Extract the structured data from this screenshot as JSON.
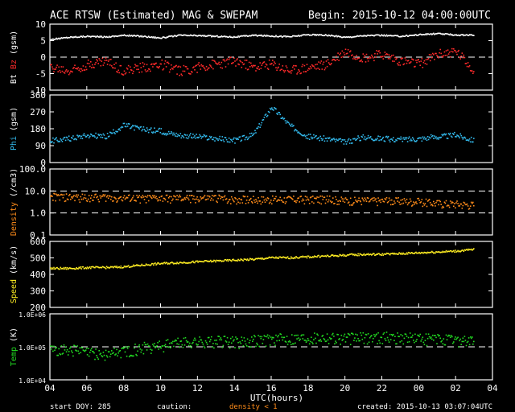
{
  "header": {
    "title": "ACE RTSW (Estimated) MAG & SWEPAM",
    "begin": "Begin: 2015-10-12 04:00:00UTC"
  },
  "footer": {
    "start_doy": "start DOY: 285",
    "caution": "caution:",
    "density_note": "density < 1",
    "created": "created: 2015-10-13 03:07:04UTC"
  },
  "xaxis": {
    "label": "UTC(hours)",
    "ticks": [
      "04",
      "06",
      "08",
      "10",
      "12",
      "14",
      "16",
      "18",
      "20",
      "22",
      "00",
      "02",
      "04"
    ]
  },
  "colors": {
    "bt": "#ffffff",
    "bz": "#ff2a2a",
    "phi": "#33bbee",
    "density": "#ff8c1a",
    "speed": "#ffee22",
    "temp": "#22dd22",
    "frame": "#ffffff",
    "background": "#000000"
  },
  "chart_data": [
    {
      "type": "scatter",
      "ylabel_parts": [
        "Bt",
        "Bz",
        "(gsm)"
      ],
      "ylim": [
        -10,
        10
      ],
      "yticks": [
        "10",
        "5",
        "0",
        "-5",
        "-10"
      ],
      "dashed_ref": [
        0
      ],
      "series": [
        {
          "name": "Bt",
          "x": [
            0,
            1,
            2,
            3,
            4,
            5,
            6,
            7,
            8,
            9,
            10,
            11,
            12,
            13,
            14,
            15,
            16,
            17,
            18,
            19,
            20,
            21,
            22,
            23
          ],
          "values": [
            5.5,
            6.2,
            6.5,
            6.3,
            6.8,
            6.5,
            6.0,
            6.8,
            6.7,
            6.5,
            6.3,
            6.8,
            6.6,
            6.4,
            7.0,
            6.8,
            6.2,
            6.7,
            6.8,
            6.5,
            7.0,
            7.3,
            6.9,
            6.8
          ]
        },
        {
          "name": "Bz",
          "x": [
            0,
            1,
            2,
            3,
            4,
            5,
            6,
            7,
            8,
            9,
            10,
            11,
            12,
            13,
            14,
            15,
            16,
            17,
            18,
            19,
            20,
            21,
            22,
            23
          ],
          "values": [
            -3,
            -4,
            -2,
            -1,
            -4,
            -3,
            -2,
            -4,
            -3,
            -2,
            -1,
            -3,
            -2,
            -4,
            -3,
            -2,
            2,
            0,
            1,
            -1,
            -2,
            1,
            2,
            -4
          ]
        }
      ]
    },
    {
      "type": "scatter",
      "ylabel_parts": [
        "Phi",
        "(gsm)"
      ],
      "ylim": [
        0,
        360
      ],
      "yticks": [
        "360",
        "270",
        "180",
        "90",
        "0"
      ],
      "series": [
        {
          "name": "Phi",
          "x": [
            0,
            1,
            2,
            3,
            4,
            5,
            6,
            7,
            8,
            9,
            10,
            11,
            12,
            13,
            14,
            15,
            16,
            17,
            18,
            19,
            20,
            21,
            22,
            23
          ],
          "values": [
            120,
            130,
            150,
            140,
            200,
            180,
            170,
            150,
            140,
            130,
            120,
            150,
            300,
            200,
            140,
            130,
            110,
            140,
            130,
            125,
            130,
            140,
            150,
            120
          ]
        }
      ]
    },
    {
      "type": "scatter",
      "ylabel_parts": [
        "Density",
        "(/cm3)"
      ],
      "yscale": "log",
      "ylim": [
        0.1,
        100
      ],
      "yticks": [
        "100.0",
        "10.0",
        "1.0",
        "0.1"
      ],
      "dashed_ref": [
        10,
        1
      ],
      "series": [
        {
          "name": "Density",
          "x": [
            0,
            1,
            2,
            3,
            4,
            5,
            6,
            7,
            8,
            9,
            10,
            11,
            12,
            13,
            14,
            15,
            16,
            17,
            18,
            19,
            20,
            21,
            22,
            23
          ],
          "values": [
            6,
            5.5,
            5.5,
            5.5,
            5,
            5,
            5,
            5,
            5,
            5,
            4.5,
            4.5,
            4.5,
            4.5,
            4.5,
            4.5,
            4,
            4,
            3.8,
            3.8,
            3.5,
            3,
            2.8,
            2.5
          ]
        }
      ]
    },
    {
      "type": "scatter",
      "ylabel_parts": [
        "Speed",
        "(km/s)"
      ],
      "ylim": [
        200,
        600
      ],
      "yticks": [
        "600",
        "500",
        "400",
        "300",
        "200"
      ],
      "series": [
        {
          "name": "Speed",
          "x": [
            0,
            1,
            2,
            3,
            4,
            5,
            6,
            7,
            8,
            9,
            10,
            11,
            12,
            13,
            14,
            15,
            16,
            17,
            18,
            19,
            20,
            21,
            22,
            23
          ],
          "values": [
            440,
            440,
            445,
            445,
            450,
            460,
            470,
            475,
            480,
            485,
            490,
            495,
            505,
            505,
            510,
            515,
            520,
            525,
            525,
            530,
            535,
            540,
            545,
            555
          ]
        }
      ]
    },
    {
      "type": "scatter",
      "ylabel_parts": [
        "Temp",
        "(K)"
      ],
      "yscale": "log",
      "ylim": [
        10000,
        1000000
      ],
      "yticks": [
        "1.0E+06",
        "1.0E+05",
        "1.0E+04"
      ],
      "dashed_ref": [
        100000
      ],
      "series": [
        {
          "name": "Temp",
          "x": [
            0,
            1,
            2,
            3,
            4,
            5,
            6,
            7,
            8,
            9,
            10,
            11,
            12,
            13,
            14,
            15,
            16,
            17,
            18,
            19,
            20,
            21,
            22,
            23
          ],
          "values": [
            80000,
            90000,
            70000,
            60000,
            80000,
            100000,
            120000,
            140000,
            150000,
            160000,
            150000,
            170000,
            180000,
            190000,
            200000,
            210000,
            190000,
            200000,
            210000,
            200000,
            190000,
            180000,
            170000,
            160000
          ]
        }
      ]
    }
  ]
}
